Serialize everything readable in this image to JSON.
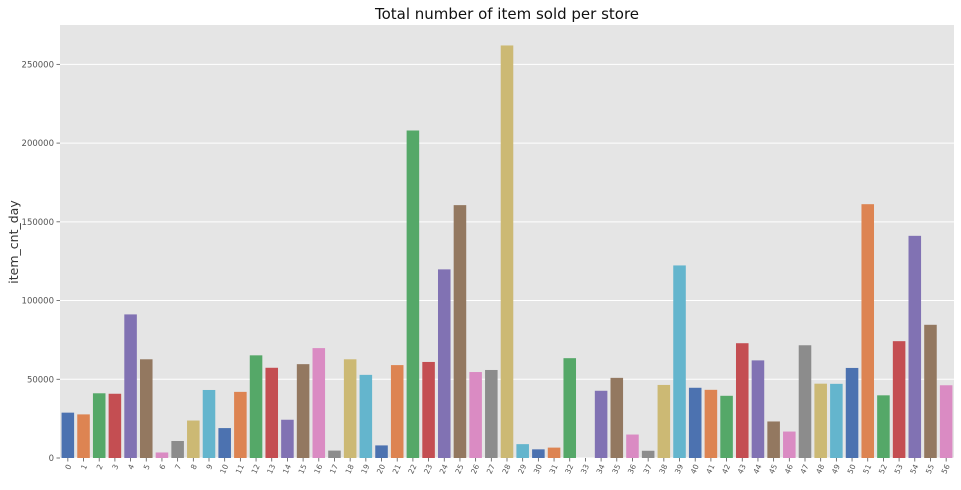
{
  "chart_data": {
    "type": "bar",
    "title": "Total number of item sold per store",
    "xlabel": "",
    "ylabel": "item_cnt_day",
    "ylim": [
      0,
      275000
    ],
    "yticks": [
      0,
      50000,
      100000,
      150000,
      200000,
      250000
    ],
    "grid": true,
    "categories": [
      "0",
      "1",
      "2",
      "3",
      "4",
      "5",
      "6",
      "7",
      "8",
      "9",
      "10",
      "11",
      "12",
      "13",
      "14",
      "15",
      "16",
      "17",
      "18",
      "19",
      "20",
      "21",
      "22",
      "23",
      "24",
      "25",
      "26",
      "27",
      "28",
      "29",
      "30",
      "31",
      "32",
      "33",
      "34",
      "35",
      "36",
      "37",
      "38",
      "39",
      "40",
      "41",
      "42",
      "43",
      "44",
      "45",
      "46",
      "47",
      "48",
      "49",
      "50",
      "51",
      "52",
      "53",
      "54",
      "55",
      "56"
    ],
    "values": [
      28800,
      27700,
      41100,
      40800,
      91200,
      62700,
      3500,
      10800,
      23800,
      43200,
      19000,
      42000,
      65200,
      57300,
      24300,
      59600,
      69800,
      4700,
      62700,
      52800,
      8000,
      59000,
      208000,
      61000,
      119800,
      160600,
      54600,
      55900,
      262000,
      8800,
      5500,
      6600,
      63400,
      0,
      42700,
      50900,
      14900,
      4600,
      46400,
      122300,
      44600,
      43300,
      39500,
      72900,
      62000,
      23200,
      16800,
      71600,
      47200,
      47100,
      57200,
      161200,
      39800,
      74200,
      141100,
      84600,
      46200
    ],
    "palette": [
      "#4c72b0",
      "#dd8452",
      "#55a868",
      "#c44e52",
      "#8172b3",
      "#937860",
      "#da8bc3",
      "#8c8c8c",
      "#ccb974",
      "#64b5cd"
    ],
    "background": "#e5e5e5",
    "gridcolor": "#ffffff"
  }
}
